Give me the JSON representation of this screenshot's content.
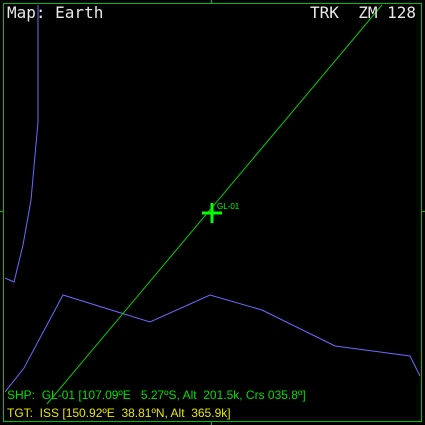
{
  "header": {
    "map_title": "Map: Earth",
    "mode": "TRK",
    "zoom": "ZM 128"
  },
  "map": {
    "ship_marker_label": "GL-01"
  },
  "ship_info": {
    "prefix": "SHP:",
    "name": "GL-01",
    "details": "[107.09ºE   5.27ºS, Alt  201.5k, Crs 035.8º]"
  },
  "target_info": {
    "prefix": "TGT:",
    "name": "ISS",
    "details": "[150.92ºE  38.81ºN, Alt  365.9k]"
  },
  "colors": {
    "frame": "#00c000",
    "coastline": "#6a6aff",
    "ground_track": "#00d000",
    "ship_text": "#00e000",
    "target_text": "#e8e800",
    "header_text": "#e8e8e8"
  }
}
